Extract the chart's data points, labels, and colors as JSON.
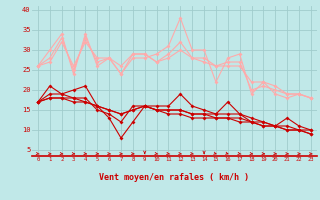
{
  "bg_color": "#c0e8e8",
  "grid_color": "#a0cccc",
  "title": "Vent moyen/en rafales ( km/h )",
  "xlim": [
    -0.5,
    23.5
  ],
  "ylim": [
    3.5,
    41
  ],
  "yticks": [
    5,
    10,
    15,
    20,
    25,
    30,
    35,
    40
  ],
  "xticks": [
    0,
    1,
    2,
    3,
    4,
    5,
    6,
    7,
    8,
    9,
    10,
    11,
    12,
    13,
    14,
    15,
    16,
    17,
    18,
    19,
    20,
    21,
    22,
    23
  ],
  "lines_dark": [
    [
      17,
      21,
      19,
      20,
      21,
      16,
      13,
      8,
      12,
      16,
      16,
      16,
      19,
      16,
      15,
      14,
      17,
      14,
      12,
      11,
      11,
      13,
      11,
      10
    ],
    [
      17,
      19,
      19,
      18,
      18,
      15,
      14,
      12,
      16,
      16,
      15,
      15,
      15,
      14,
      14,
      14,
      14,
      14,
      13,
      12,
      11,
      11,
      10,
      10
    ],
    [
      17,
      18,
      18,
      18,
      17,
      16,
      15,
      14,
      15,
      16,
      15,
      15,
      15,
      14,
      14,
      13,
      13,
      13,
      12,
      12,
      11,
      10,
      10,
      9
    ],
    [
      17,
      18,
      18,
      17,
      17,
      16,
      15,
      14,
      15,
      16,
      15,
      14,
      14,
      13,
      13,
      13,
      13,
      12,
      12,
      11,
      11,
      10,
      10,
      9
    ]
  ],
  "lines_light": [
    [
      26,
      30,
      34,
      24,
      34,
      26,
      28,
      24,
      28,
      28,
      29,
      31,
      38,
      30,
      30,
      22,
      28,
      29,
      19,
      22,
      19,
      18,
      19,
      18
    ],
    [
      26,
      28,
      33,
      25,
      33,
      27,
      28,
      24,
      29,
      29,
      27,
      29,
      32,
      28,
      28,
      26,
      27,
      27,
      20,
      21,
      20,
      19,
      19,
      18
    ],
    [
      26,
      27,
      32,
      26,
      32,
      28,
      28,
      26,
      29,
      29,
      27,
      28,
      30,
      28,
      27,
      26,
      26,
      26,
      22,
      22,
      21,
      19,
      19,
      18
    ]
  ],
  "dark_color": "#cc0000",
  "light_color": "#ffaaaa",
  "marker_size": 2.0,
  "linewidth": 0.8
}
